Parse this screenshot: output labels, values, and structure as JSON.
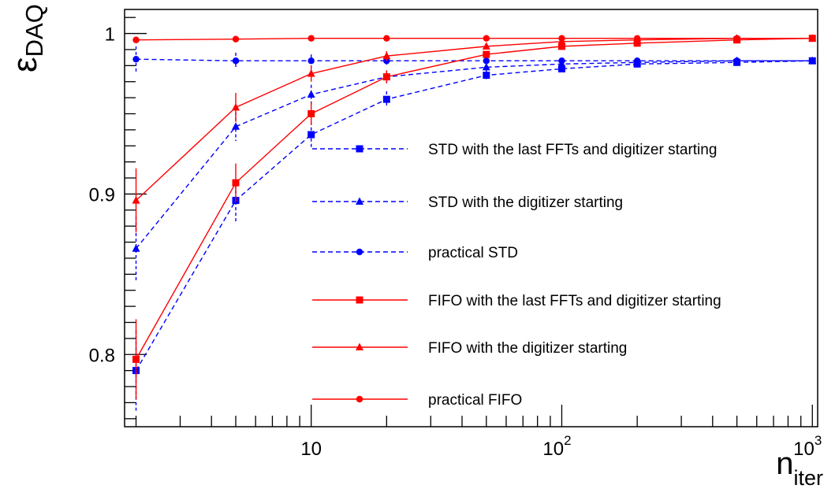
{
  "chart_data": {
    "type": "line",
    "title": "",
    "xlabel": "n",
    "xlabel_sub": "iter",
    "ylabel": "ε",
    "ylabel_sub": "DAQ",
    "xscale": "log",
    "xlim": [
      1.8,
      1050
    ],
    "ylim": [
      0.755,
      1.015
    ],
    "grid": false,
    "legend_position": "center-right",
    "x_ticks": [
      {
        "value": 10,
        "base": "10",
        "exp": ""
      },
      {
        "value": 100,
        "base": "10",
        "exp": "2"
      },
      {
        "value": 1000,
        "base": "10",
        "exp": "3"
      }
    ],
    "y_ticks": [
      {
        "value": 0.8,
        "label": "0.8"
      },
      {
        "value": 0.9,
        "label": "0.9"
      },
      {
        "value": 1.0,
        "label": "1"
      }
    ],
    "x": [
      2,
      5,
      10,
      20,
      50,
      100,
      200,
      500,
      1000
    ],
    "series": [
      {
        "name": "STD with the last FFTs and digitizer starting",
        "color": "#0000ff",
        "dashed": true,
        "marker": "square",
        "values": [
          0.79,
          0.896,
          0.937,
          0.959,
          0.974,
          0.978,
          0.981,
          0.982,
          0.983
        ],
        "errors": [
          0.025,
          0.013,
          0.008,
          0.005,
          0.003,
          0.002,
          0.001,
          0.001,
          0.001
        ]
      },
      {
        "name": "STD with the digitizer starting",
        "color": "#0000ff",
        "dashed": true,
        "marker": "triangle",
        "values": [
          0.866,
          0.942,
          0.962,
          0.973,
          0.979,
          0.981,
          0.982,
          0.983,
          0.983
        ],
        "errors": [
          0.02,
          0.009,
          0.006,
          0.004,
          0.002,
          0.002,
          0.001,
          0.001,
          0.001
        ]
      },
      {
        "name": "practical STD",
        "color": "#0000ff",
        "dashed": true,
        "marker": "circle",
        "values": [
          0.984,
          0.983,
          0.983,
          0.983,
          0.983,
          0.983,
          0.983,
          0.983,
          0.983
        ],
        "errors": [
          0.008,
          0.005,
          0.004,
          0.003,
          0.002,
          0.001,
          0.001,
          0.001,
          0.001
        ]
      },
      {
        "name": "FIFO with the last FFTs and digitizer starting",
        "color": "#ff0000",
        "dashed": false,
        "marker": "square",
        "values": [
          0.797,
          0.907,
          0.95,
          0.973,
          0.987,
          0.992,
          0.994,
          0.996,
          0.997
        ],
        "errors": [
          0.025,
          0.012,
          0.007,
          0.004,
          0.002,
          0.001,
          0.001,
          0.001,
          0.001
        ]
      },
      {
        "name": "FIFO with the digitizer starting",
        "color": "#ff0000",
        "dashed": false,
        "marker": "triangle",
        "values": [
          0.896,
          0.954,
          0.975,
          0.986,
          0.992,
          0.995,
          0.996,
          0.997,
          0.997
        ],
        "errors": [
          0.02,
          0.009,
          0.005,
          0.003,
          0.002,
          0.001,
          0.001,
          0.001,
          0.001
        ]
      },
      {
        "name": "practical FIFO",
        "color": "#ff0000",
        "dashed": false,
        "marker": "circle",
        "values": [
          0.996,
          0.9965,
          0.997,
          0.997,
          0.997,
          0.997,
          0.997,
          0.997,
          0.997
        ],
        "errors": [
          0.002,
          0.002,
          0.001,
          0.001,
          0.001,
          0.001,
          0.001,
          0.001,
          0.001
        ]
      }
    ]
  }
}
